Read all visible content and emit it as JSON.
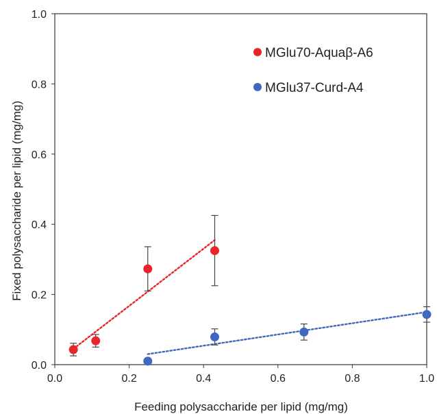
{
  "chart_data": {
    "type": "scatter",
    "xlabel": "Feeding polysaccharide per lipid (mg/mg)",
    "ylabel": "Fixed polysaccharide per lipid (mg/mg)",
    "xlim": [
      0,
      1.0
    ],
    "ylim": [
      0,
      1.0
    ],
    "x_ticks": [
      "0.0",
      "0.2",
      "0.4",
      "0.6",
      "0.8",
      "1.0"
    ],
    "y_ticks": [
      "0.0",
      "0.2",
      "0.4",
      "0.6",
      "0.8",
      "1.0"
    ],
    "grid": false,
    "legend_position": "top-right",
    "series": [
      {
        "name": "MGlu70-Aquaβ-A6",
        "color": "#e8262a",
        "points": [
          {
            "x": 0.05,
            "y": 0.043,
            "err": 0.018
          },
          {
            "x": 0.11,
            "y": 0.068,
            "err": 0.018
          },
          {
            "x": 0.25,
            "y": 0.273,
            "err": 0.063
          },
          {
            "x": 0.43,
            "y": 0.325,
            "err": 0.1
          }
        ],
        "trendline": {
          "x": [
            0.05,
            0.43
          ],
          "y": [
            0.045,
            0.355
          ],
          "style": "dotted"
        }
      },
      {
        "name": "MGlu37-Curd-A4",
        "color": "#4068c0",
        "points": [
          {
            "x": 0.25,
            "y": 0.01,
            "err": 0
          },
          {
            "x": 0.43,
            "y": 0.079,
            "err": 0.023
          },
          {
            "x": 0.67,
            "y": 0.093,
            "err": 0.023
          },
          {
            "x": 1.0,
            "y": 0.143,
            "err": 0.022
          }
        ],
        "trendline": {
          "x": [
            0.25,
            1.0
          ],
          "y": [
            0.03,
            0.15
          ],
          "style": "dotted"
        }
      }
    ]
  }
}
